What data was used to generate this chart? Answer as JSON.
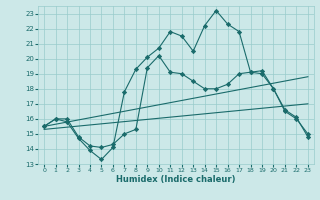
{
  "xlabel": "Humidex (Indice chaleur)",
  "background_color": "#cce8e8",
  "grid_color": "#99cccc",
  "line_color": "#1a6b6b",
  "xlim": [
    -0.5,
    23.5
  ],
  "ylim": [
    13,
    23.5
  ],
  "yticks": [
    13,
    14,
    15,
    16,
    17,
    18,
    19,
    20,
    21,
    22,
    23
  ],
  "xticks": [
    0,
    1,
    2,
    3,
    4,
    5,
    6,
    7,
    8,
    9,
    10,
    11,
    12,
    13,
    14,
    15,
    16,
    17,
    18,
    19,
    20,
    21,
    22,
    23
  ],
  "line_jagged": {
    "x": [
      0,
      1,
      2,
      3,
      4,
      5,
      6,
      7,
      8,
      9,
      10,
      11,
      12,
      13,
      14,
      15,
      16,
      17,
      18,
      19,
      20,
      21,
      22,
      23
    ],
    "y": [
      15.5,
      16.0,
      15.8,
      14.7,
      13.9,
      13.3,
      14.1,
      17.8,
      19.3,
      20.1,
      20.7,
      21.8,
      21.5,
      20.5,
      22.2,
      23.2,
      22.3,
      21.8,
      19.1,
      19.0,
      18.0,
      16.6,
      16.1,
      14.8
    ]
  },
  "line_smooth": {
    "x": [
      0,
      1,
      2,
      3,
      4,
      5,
      6,
      7,
      8,
      9,
      10,
      11,
      12,
      13,
      14,
      15,
      16,
      17,
      18,
      19,
      20,
      21,
      22,
      23
    ],
    "y": [
      15.5,
      16.0,
      16.0,
      14.8,
      14.2,
      14.1,
      14.3,
      15.0,
      15.3,
      19.4,
      20.2,
      19.1,
      19.0,
      18.5,
      18.0,
      18.0,
      18.3,
      19.0,
      19.1,
      19.2,
      18.0,
      16.5,
      16.0,
      15.0
    ]
  },
  "line_upper_diagonal": {
    "x": [
      0,
      23
    ],
    "y": [
      15.5,
      18.8
    ]
  },
  "line_lower_diagonal": {
    "x": [
      0,
      23
    ],
    "y": [
      15.3,
      17.0
    ]
  }
}
